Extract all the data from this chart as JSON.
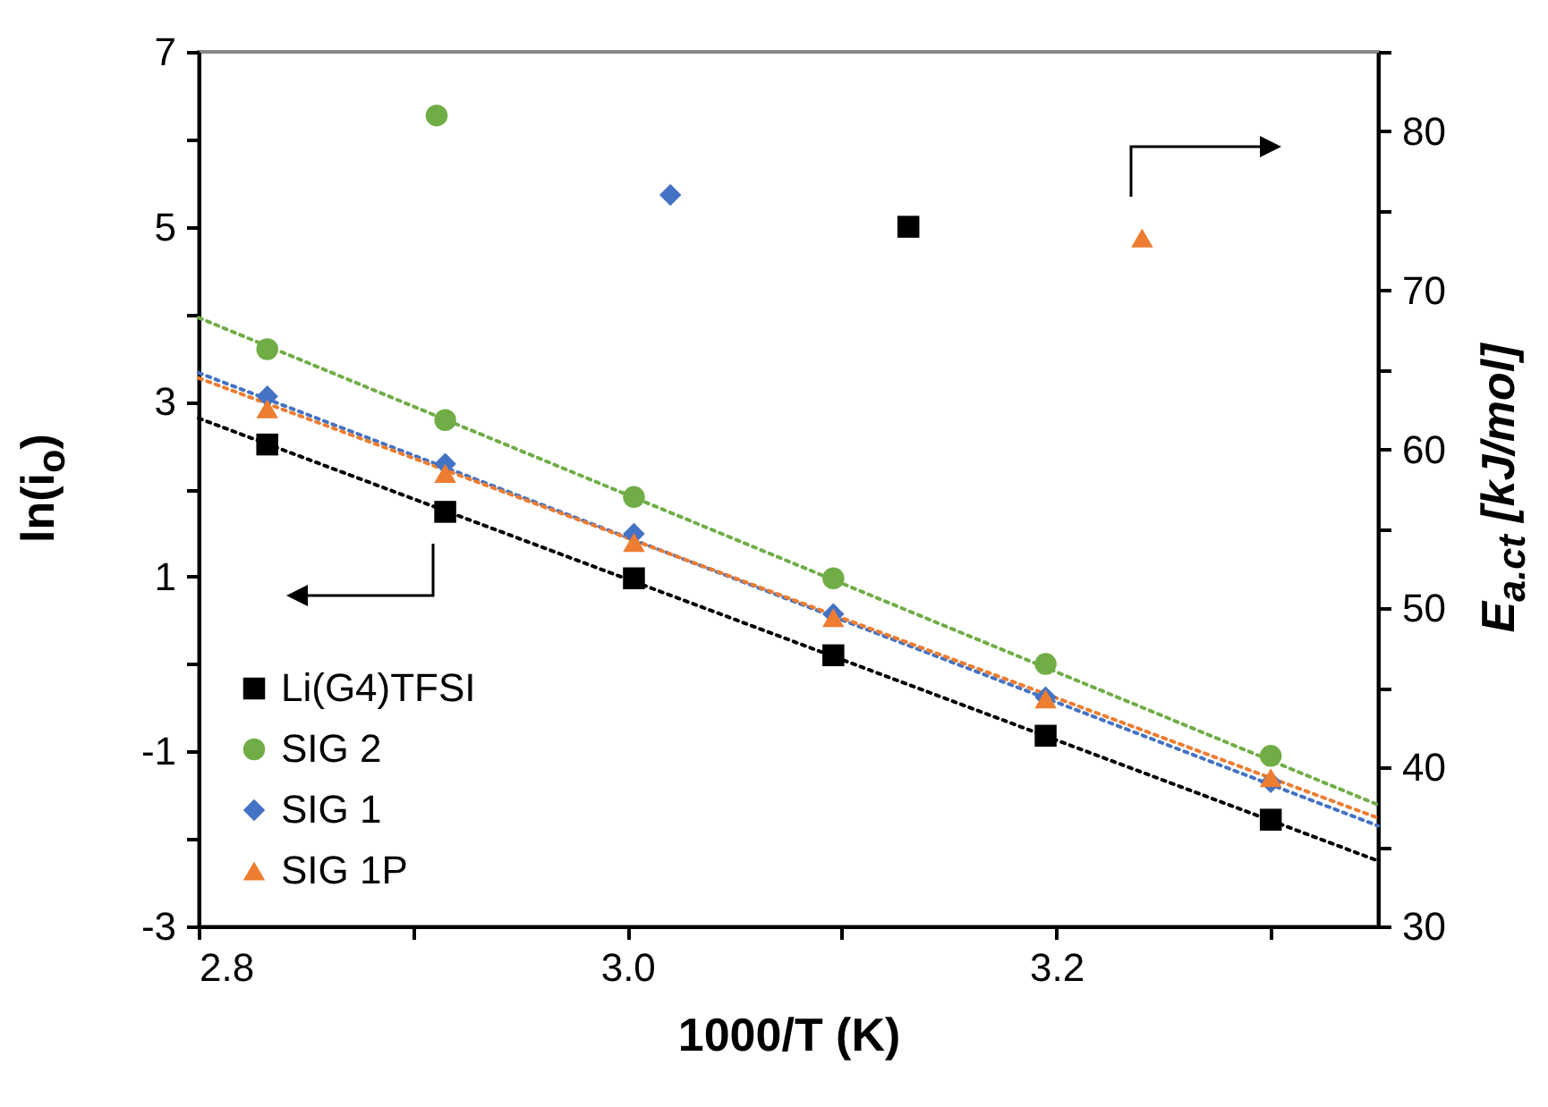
{
  "chart_data": {
    "type": "scatter",
    "xlabel": "1000/T (K)",
    "ylabel": "ln(i$_{o}$)",
    "y2label": "E$_{a.ct}$ [kJ/mol]",
    "xlim": [
      2.8,
      3.35
    ],
    "xticks": [
      2.8,
      {
        "value": 2.9,
        "label": null
      },
      {
        "value": 3,
        "label": "3.0"
      },
      {
        "value": 3.1,
        "label": null
      },
      3.2,
      {
        "value": 3.3,
        "label": null
      }
    ],
    "ylim": [
      -3,
      7
    ],
    "yticks": [
      -3,
      {
        "value": -2,
        "label": null
      },
      -1,
      {
        "value": 0,
        "label": null
      },
      1,
      {
        "value": 2,
        "label": null
      },
      3,
      {
        "value": 4,
        "label": null
      },
      5,
      {
        "value": 6,
        "label": null
      },
      7
    ],
    "y2lim": [
      30,
      85
    ],
    "y2ticks": [
      30,
      {
        "value": 35,
        "label": null
      },
      40,
      {
        "value": 45,
        "label": null
      },
      50,
      {
        "value": 55,
        "label": null
      },
      60,
      {
        "value": 65,
        "label": null
      },
      70,
      {
        "value": 75,
        "label": null
      },
      80,
      {
        "value": 85,
        "label": null
      }
    ],
    "legend": "bottom left",
    "series": [
      {
        "type": "line",
        "line_style": "dotted",
        "color": "#000000",
        "x": [
          2.8,
          3.35
        ],
        "values": [
          2.81,
          -2.25
        ]
      },
      {
        "type": "line",
        "line_style": "dotted",
        "color": "#70ad47",
        "x": [
          2.8,
          3.35
        ],
        "values": [
          3.96,
          -1.61
        ]
      },
      {
        "type": "line",
        "line_style": "dotted",
        "color": "#4472c4",
        "x": [
          2.8,
          3.35
        ],
        "values": [
          3.33,
          -1.85
        ]
      },
      {
        "type": "line",
        "line_style": "dotted",
        "color": "#ed7d31",
        "x": [
          2.8,
          3.35
        ],
        "values": [
          3.27,
          -1.76
        ]
      },
      {
        "name": "Li(G4)TFSI",
        "marker": "square",
        "color": "#000000",
        "x": [
          2.832,
          2.915,
          3.003,
          3.096,
          3.195,
          3.3
        ],
        "values": [
          2.51,
          1.74,
          0.98,
          0.1,
          -0.82,
          -1.78
        ]
      },
      {
        "name": "SIG 2",
        "marker": "circle",
        "color": "#70ad47",
        "x": [
          2.832,
          2.915,
          3.003,
          3.096,
          3.195,
          3.3
        ],
        "values": [
          3.6,
          2.79,
          1.91,
          0.98,
          0.0,
          -1.05
        ]
      },
      {
        "name": "SIG 1",
        "marker": "diamond",
        "color": "#4472c4",
        "x": [
          2.832,
          2.915,
          3.003,
          3.096,
          3.195,
          3.3
        ],
        "values": [
          3.06,
          2.29,
          1.49,
          0.57,
          -0.38,
          -1.35
        ]
      },
      {
        "name": "SIG 1P",
        "marker": "triangle",
        "color": "#ed7d31",
        "x": [
          2.832,
          2.915,
          3.003,
          3.096,
          3.195,
          3.3
        ],
        "values": [
          2.92,
          2.18,
          1.39,
          0.53,
          -0.4,
          -1.3
        ]
      },
      {
        "axis": "y2",
        "marker": "square",
        "color": "#000000",
        "x": [
          3.131
        ],
        "values": [
          74.0
        ]
      },
      {
        "axis": "y2",
        "marker": "circle",
        "color": "#70ad47",
        "x": [
          2.911
        ],
        "values": [
          81.0
        ]
      },
      {
        "axis": "y2",
        "marker": "diamond",
        "color": "#4472c4",
        "x": [
          3.02
        ],
        "values": [
          76.0
        ]
      },
      {
        "axis": "y2",
        "marker": "triangle",
        "color": "#ed7d31",
        "x": [
          3.24
        ],
        "values": [
          73.3
        ]
      }
    ]
  }
}
